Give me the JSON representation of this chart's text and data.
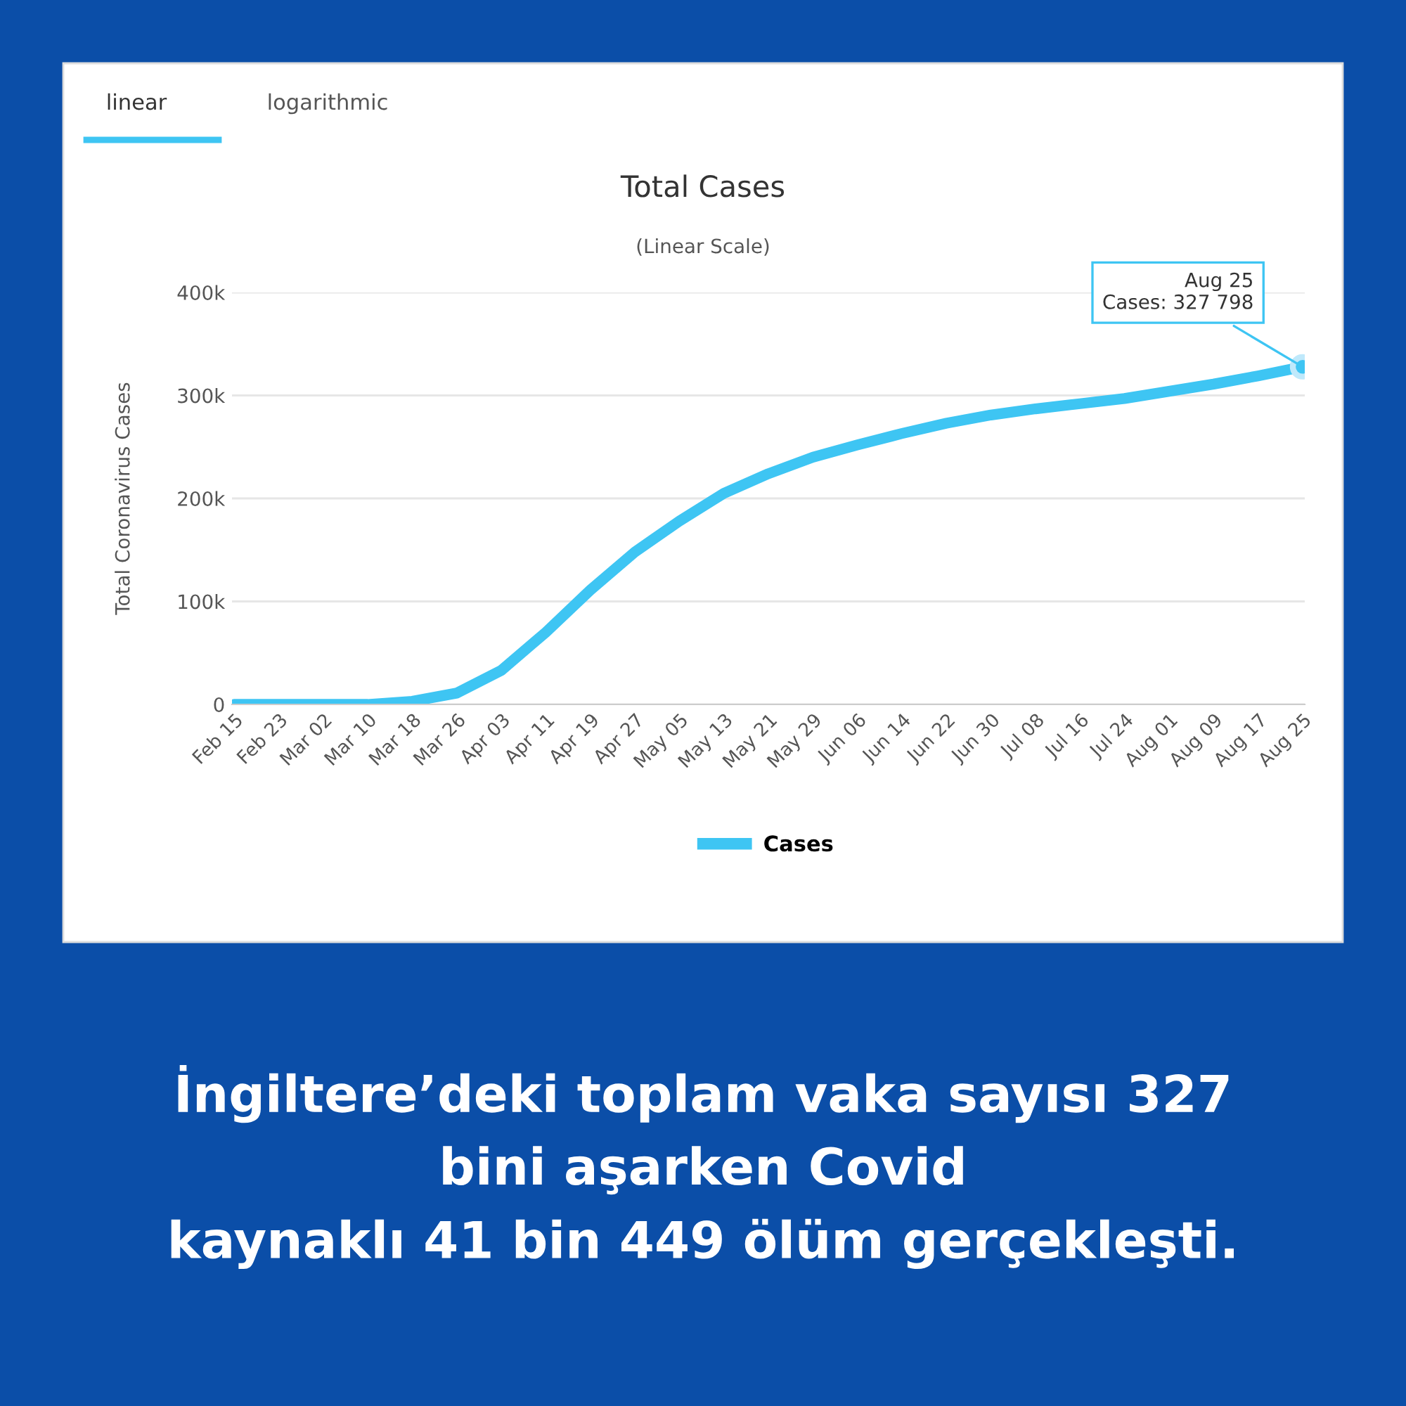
{
  "chart_data": {
    "type": "line",
    "title": "Total Cases",
    "subtitle": "(Linear Scale)",
    "ylabel": "Total Coronavirus Cases",
    "categories": [
      "Feb 15",
      "Feb 23",
      "Mar 02",
      "Mar 10",
      "Mar 18",
      "Mar 26",
      "Apr 03",
      "Apr 11",
      "Apr 19",
      "Apr 27",
      "May 05",
      "May 13",
      "May 21",
      "May 29",
      "Jun 06",
      "Jun 14",
      "Jun 22",
      "Jun 30",
      "Jul 08",
      "Jul 16",
      "Jul 24",
      "Aug 01",
      "Aug 09",
      "Aug 17",
      "Aug 25"
    ],
    "series": [
      {
        "name": "Cases",
        "color": "#3ec5f3",
        "values": [
          0,
          0,
          0,
          0,
          3000,
          11000,
          33000,
          70000,
          111000,
          148000,
          178000,
          205000,
          224000,
          240000,
          252000,
          263000,
          273000,
          281000,
          287000,
          292000,
          297000,
          304000,
          311000,
          319000,
          327798
        ]
      }
    ],
    "ylim": [
      0,
      400000
    ],
    "yticks": [
      {
        "value": 0,
        "label": "0"
      },
      {
        "value": 100000,
        "label": "100k"
      },
      {
        "value": 200000,
        "label": "200k"
      },
      {
        "value": 300000,
        "label": "300k"
      },
      {
        "value": 400000,
        "label": "400k"
      }
    ],
    "grid": "y",
    "legend": "bottom",
    "marker": "none",
    "line_style": "solid",
    "annotations": [
      {
        "text": "Aug 25\nCases: 327 798",
        "x": "Aug 25",
        "y": 327798
      },
      "linear",
      "logarithmic",
      "İngiltere’deki toplam vaka sayısı 327\nbini aşarken Covid\nkaynaklı 41 bin 449 ölüm gerçekleşti."
    ]
  }
}
